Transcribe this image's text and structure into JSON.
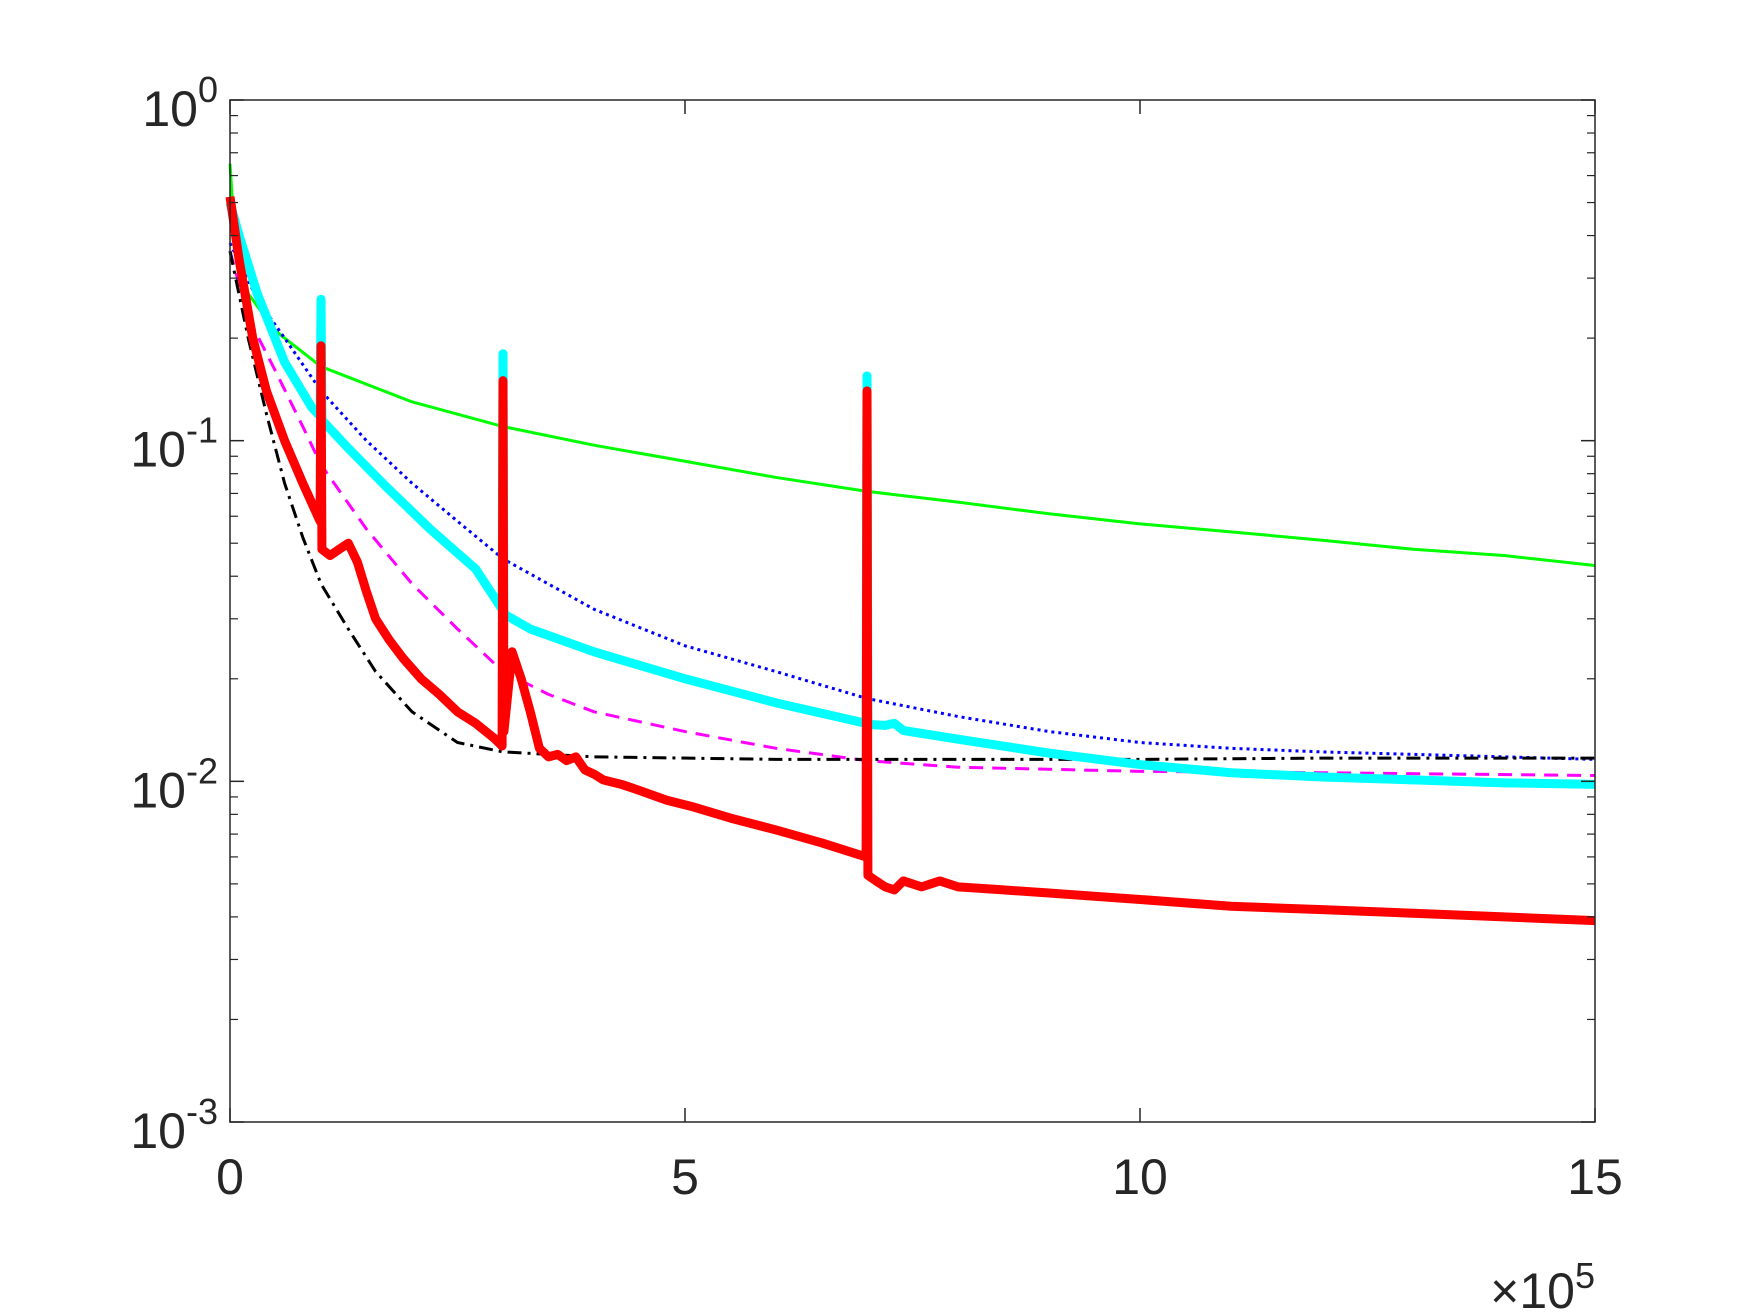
{
  "chart_data": {
    "type": "line",
    "title": "",
    "xlabel": "",
    "ylabel": "",
    "x_scale_label": {
      "base": "×10",
      "exponent": "5"
    },
    "x_scale_factor": 100000,
    "xlim": [
      0,
      1500000
    ],
    "ylim": [
      0.001,
      1
    ],
    "y_scale": "log",
    "grid": false,
    "legend": "none",
    "x_ticks": [
      {
        "value": 0,
        "label": "0"
      },
      {
        "value": 500000,
        "label": "5"
      },
      {
        "value": 1000000,
        "label": "10"
      },
      {
        "value": 1500000,
        "label": "15"
      }
    ],
    "y_ticks": [
      {
        "value": 1,
        "base": "10",
        "exponent": "0"
      },
      {
        "value": 0.1,
        "base": "10",
        "exponent": "-1"
      },
      {
        "value": 0.01,
        "base": "10",
        "exponent": "-2"
      },
      {
        "value": 0.001,
        "base": "10",
        "exponent": "-3"
      }
    ],
    "series": [
      {
        "color": "#00ff00",
        "style": "solid",
        "width": 3,
        "points": [
          [
            0,
            0.65
          ],
          [
            5000,
            0.4
          ],
          [
            20000,
            0.27
          ],
          [
            50000,
            0.21
          ],
          [
            100000,
            0.165
          ],
          [
            200000,
            0.13
          ],
          [
            300000,
            0.11
          ],
          [
            400000,
            0.097
          ],
          [
            500000,
            0.087
          ],
          [
            600000,
            0.078
          ],
          [
            700000,
            0.071
          ],
          [
            800000,
            0.066
          ],
          [
            900000,
            0.061
          ],
          [
            1000000,
            0.057
          ],
          [
            1100000,
            0.054
          ],
          [
            1200000,
            0.051
          ],
          [
            1300000,
            0.048
          ],
          [
            1400000,
            0.046
          ],
          [
            1500000,
            0.043
          ]
        ]
      },
      {
        "color": "#0000ff",
        "style": "dotted",
        "width": 3,
        "points": [
          [
            0,
            0.38
          ],
          [
            30000,
            0.26
          ],
          [
            60000,
            0.2
          ],
          [
            100000,
            0.14
          ],
          [
            150000,
            0.1
          ],
          [
            200000,
            0.075
          ],
          [
            250000,
            0.058
          ],
          [
            300000,
            0.045
          ],
          [
            400000,
            0.032
          ],
          [
            500000,
            0.025
          ],
          [
            600000,
            0.021
          ],
          [
            700000,
            0.0175
          ],
          [
            800000,
            0.0155
          ],
          [
            900000,
            0.014
          ],
          [
            1000000,
            0.013
          ],
          [
            1100000,
            0.0125
          ],
          [
            1200000,
            0.0122
          ],
          [
            1300000,
            0.012
          ],
          [
            1400000,
            0.0118
          ],
          [
            1500000,
            0.0116
          ]
        ]
      },
      {
        "color": "#ff00ff",
        "style": "dashed",
        "width": 3,
        "points": [
          [
            0,
            0.36
          ],
          [
            20000,
            0.23
          ],
          [
            50000,
            0.16
          ],
          [
            80000,
            0.11
          ],
          [
            100000,
            0.085
          ],
          [
            150000,
            0.055
          ],
          [
            200000,
            0.038
          ],
          [
            250000,
            0.028
          ],
          [
            300000,
            0.021
          ],
          [
            350000,
            0.018
          ],
          [
            400000,
            0.016
          ],
          [
            500000,
            0.014
          ],
          [
            600000,
            0.0125
          ],
          [
            700000,
            0.0115
          ],
          [
            800000,
            0.011
          ],
          [
            1000000,
            0.0107
          ],
          [
            1200000,
            0.0106
          ],
          [
            1500000,
            0.0104
          ]
        ]
      },
      {
        "color": "#000000",
        "style": "dashdot",
        "width": 3,
        "points": [
          [
            0,
            0.36
          ],
          [
            20000,
            0.2
          ],
          [
            40000,
            0.12
          ],
          [
            60000,
            0.075
          ],
          [
            80000,
            0.052
          ],
          [
            100000,
            0.038
          ],
          [
            130000,
            0.028
          ],
          [
            160000,
            0.021
          ],
          [
            200000,
            0.016
          ],
          [
            250000,
            0.013
          ],
          [
            300000,
            0.0122
          ],
          [
            400000,
            0.0118
          ],
          [
            600000,
            0.0116
          ],
          [
            800000,
            0.0116
          ],
          [
            1000000,
            0.0116
          ],
          [
            1200000,
            0.0117
          ],
          [
            1500000,
            0.0117
          ]
        ]
      },
      {
        "color": "#00ffff",
        "style": "solid",
        "width": 9,
        "points": [
          [
            0,
            0.5
          ],
          [
            10000,
            0.4
          ],
          [
            30000,
            0.27
          ],
          [
            60000,
            0.17
          ],
          [
            90000,
            0.125
          ],
          [
            99000,
            0.118
          ],
          [
            100000,
            0.26
          ],
          [
            101000,
            0.115
          ],
          [
            130000,
            0.095
          ],
          [
            170000,
            0.074
          ],
          [
            220000,
            0.055
          ],
          [
            270000,
            0.042
          ],
          [
            299000,
            0.032
          ],
          [
            300000,
            0.18
          ],
          [
            301000,
            0.031
          ],
          [
            330000,
            0.028
          ],
          [
            400000,
            0.024
          ],
          [
            500000,
            0.02
          ],
          [
            600000,
            0.017
          ],
          [
            699000,
            0.0148
          ],
          [
            700000,
            0.155
          ],
          [
            701000,
            0.0147
          ],
          [
            720000,
            0.0146
          ],
          [
            730000,
            0.0148
          ],
          [
            740000,
            0.0141
          ],
          [
            800000,
            0.0133
          ],
          [
            900000,
            0.0121
          ],
          [
            1000000,
            0.0112
          ],
          [
            1100000,
            0.0106
          ],
          [
            1200000,
            0.0103
          ],
          [
            1300000,
            0.0101
          ],
          [
            1400000,
            0.0099
          ],
          [
            1500000,
            0.0098
          ]
        ]
      },
      {
        "color": "#ff0000",
        "style": "solid",
        "width": 9,
        "points": [
          [
            0,
            0.52
          ],
          [
            10000,
            0.34
          ],
          [
            25000,
            0.2
          ],
          [
            40000,
            0.14
          ],
          [
            60000,
            0.1
          ],
          [
            80000,
            0.075
          ],
          [
            99000,
            0.058
          ],
          [
            100000,
            0.19
          ],
          [
            101000,
            0.048
          ],
          [
            110000,
            0.046
          ],
          [
            120000,
            0.048
          ],
          [
            130000,
            0.05
          ],
          [
            140000,
            0.044
          ],
          [
            150000,
            0.036
          ],
          [
            160000,
            0.03
          ],
          [
            175000,
            0.026
          ],
          [
            190000,
            0.023
          ],
          [
            210000,
            0.02
          ],
          [
            230000,
            0.018
          ],
          [
            250000,
            0.016
          ],
          [
            270000,
            0.0148
          ],
          [
            290000,
            0.0134
          ],
          [
            299000,
            0.0127
          ],
          [
            300000,
            0.15
          ],
          [
            301000,
            0.014
          ],
          [
            310000,
            0.024
          ],
          [
            320000,
            0.02
          ],
          [
            330000,
            0.016
          ],
          [
            340000,
            0.0125
          ],
          [
            350000,
            0.0118
          ],
          [
            360000,
            0.012
          ],
          [
            370000,
            0.0115
          ],
          [
            380000,
            0.0118
          ],
          [
            390000,
            0.0108
          ],
          [
            400000,
            0.0105
          ],
          [
            410000,
            0.0101
          ],
          [
            430000,
            0.0098
          ],
          [
            450000,
            0.0094
          ],
          [
            480000,
            0.0088
          ],
          [
            510000,
            0.0084
          ],
          [
            550000,
            0.0078
          ],
          [
            600000,
            0.0072
          ],
          [
            650000,
            0.0066
          ],
          [
            699000,
            0.006
          ],
          [
            700000,
            0.14
          ],
          [
            701000,
            0.0053
          ],
          [
            710000,
            0.0051
          ],
          [
            720000,
            0.0049
          ],
          [
            730000,
            0.0048
          ],
          [
            740000,
            0.0051
          ],
          [
            760000,
            0.0049
          ],
          [
            780000,
            0.0051
          ],
          [
            800000,
            0.0049
          ],
          [
            850000,
            0.0048
          ],
          [
            900000,
            0.0047
          ],
          [
            1000000,
            0.0045
          ],
          [
            1100000,
            0.0043
          ],
          [
            1200000,
            0.0042
          ],
          [
            1300000,
            0.0041
          ],
          [
            1400000,
            0.004
          ],
          [
            1500000,
            0.0039
          ]
        ]
      }
    ]
  }
}
